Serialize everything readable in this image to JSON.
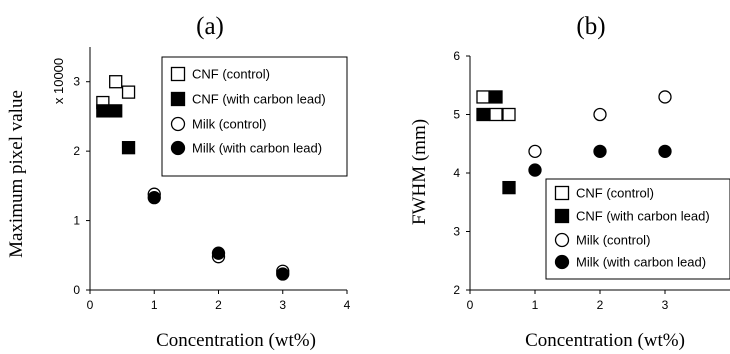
{
  "chart_data": [
    {
      "type": "scatter",
      "panel_label": "(a)",
      "xlabel": "Concentration (wt%)",
      "ylabel": "Maximum pixel value",
      "y_multiplier": "x 10000",
      "xlim": [
        0,
        4
      ],
      "ylim": [
        0,
        3.5
      ],
      "x_ticks": [
        "0",
        "1",
        "2",
        "3",
        "4"
      ],
      "y_ticks": [
        "0",
        "1",
        "2",
        "3"
      ],
      "legend_position": "top-right",
      "series": [
        {
          "name": "CNF (control)",
          "marker": "open-square",
          "x": [
            0.2,
            0.4,
            0.6
          ],
          "y": [
            2.7,
            3.0,
            2.85
          ]
        },
        {
          "name": "CNF (with carbon lead)",
          "marker": "filled-square",
          "x": [
            0.2,
            0.4,
            0.6
          ],
          "y": [
            2.58,
            2.58,
            2.05
          ]
        },
        {
          "name": "Milk (control)",
          "marker": "open-circle",
          "x": [
            1,
            2,
            3
          ],
          "y": [
            1.38,
            0.48,
            0.27
          ]
        },
        {
          "name": "Milk (with carbon lead)",
          "marker": "filled-circle",
          "x": [
            1,
            2,
            3
          ],
          "y": [
            1.33,
            0.53,
            0.23
          ]
        }
      ]
    },
    {
      "type": "scatter",
      "panel_label": "(b)",
      "xlabel": "Concentration (wt%)",
      "ylabel": "FWHM (mm)",
      "xlim": [
        0,
        4
      ],
      "ylim": [
        2,
        6
      ],
      "x_ticks": [
        "0",
        "1",
        "2",
        "3"
      ],
      "y_ticks": [
        "2",
        "3",
        "4",
        "5",
        "6"
      ],
      "legend_position": "bottom-right",
      "series": [
        {
          "name": "CNF (control)",
          "marker": "open-square",
          "x": [
            0.2,
            0.4,
            0.6
          ],
          "y": [
            5.3,
            5.0,
            5.0
          ]
        },
        {
          "name": "CNF (with carbon lead)",
          "marker": "filled-square",
          "x": [
            0.2,
            0.4,
            0.6
          ],
          "y": [
            5.0,
            5.3,
            3.75
          ]
        },
        {
          "name": "Milk (control)",
          "marker": "open-circle",
          "x": [
            1,
            2,
            3
          ],
          "y": [
            4.37,
            5.0,
            5.3
          ]
        },
        {
          "name": "Milk (with carbon lead)",
          "marker": "filled-circle",
          "x": [
            1,
            2,
            3
          ],
          "y": [
            4.05,
            4.37,
            4.37
          ]
        }
      ]
    }
  ]
}
